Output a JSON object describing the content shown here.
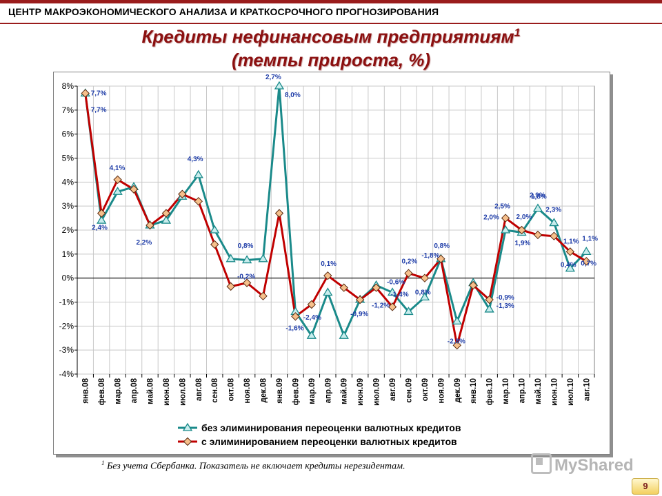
{
  "header": {
    "org": "ЦЕНТР МАКРОЭКОНОМИЧЕСКОГО АНАЛИЗА И КРАТКОСРОЧНОГО ПРОГНОЗИРОВАНИЯ"
  },
  "title": {
    "line1": "Кредиты нефинансовым предприятиям",
    "sup": "1",
    "line2": "(темпы прироста, %)"
  },
  "footnote": {
    "sup": "1",
    "text": " Без учета Сбербанка. Показатель не включает кредиты нерезидентам."
  },
  "page_number": "9",
  "watermark": "MyShared",
  "colors": {
    "accent": "#9a1c1c",
    "title": "#8b1010",
    "series_teal": "#1a8a8a",
    "series_red": "#c00000",
    "label_blue": "#1f3da8"
  },
  "chart_data": {
    "type": "line",
    "ylim": [
      -4,
      8
    ],
    "yticks": [
      "-4%",
      "-3%",
      "-2%",
      "-1%",
      "0%",
      "1%",
      "2%",
      "3%",
      "4%",
      "5%",
      "6%",
      "7%",
      "8%"
    ],
    "ytick_values": [
      -4,
      -3,
      -2,
      -1,
      0,
      1,
      2,
      3,
      4,
      5,
      6,
      7,
      8
    ],
    "grid": true,
    "legend_position": "bottom",
    "categories": [
      "янв.08",
      "фев.08",
      "мар.08",
      "апр.08",
      "май.08",
      "июн.08",
      "июл.08",
      "авг.08",
      "сен.08",
      "окт.08",
      "ноя.08",
      "дек.08",
      "янв.09",
      "фев.09",
      "мар.09",
      "апр.09",
      "май.09",
      "июн.09",
      "июл.09",
      "авг.09",
      "сен.09",
      "окт.09",
      "ноя.09",
      "дек.09",
      "янв.10",
      "фев.10",
      "мар.10",
      "апр.10",
      "май.10",
      "июн.10",
      "июл.10",
      "авг.10"
    ],
    "series": [
      {
        "name": "без элиминирования переоценки валютных кредитов",
        "color": "#1a8a8a",
        "marker": "triangle",
        "values": [
          7.7,
          2.4,
          3.6,
          3.8,
          2.2,
          2.4,
          3.4,
          4.3,
          2.0,
          0.8,
          0.75,
          0.8,
          8.0,
          -1.4,
          -2.4,
          -0.6,
          -2.4,
          -0.9,
          -0.3,
          -0.6,
          -1.4,
          -0.8,
          0.8,
          -1.8,
          -0.2,
          -1.3,
          2.0,
          1.9,
          2.9,
          2.3,
          0.4,
          1.1
        ]
      },
      {
        "name": "с элиминированием переоценки валютных кредитов",
        "color": "#c00000",
        "marker": "diamond",
        "values": [
          7.7,
          2.7,
          4.1,
          3.7,
          2.2,
          2.7,
          3.5,
          3.2,
          1.4,
          -0.35,
          -0.2,
          -0.75,
          2.7,
          -1.6,
          -1.1,
          0.1,
          -0.4,
          -0.9,
          -0.4,
          -1.2,
          0.2,
          0.0,
          0.8,
          -2.8,
          -0.3,
          -0.9,
          2.5,
          2.0,
          1.8,
          1.75,
          1.1,
          0.7
        ]
      }
    ],
    "data_labels": [
      {
        "i": 0,
        "text": "7,7%",
        "dx": 8,
        "dy": 3
      },
      {
        "i": 0,
        "text": "7,7%",
        "dx": 8,
        "dy": 27
      },
      {
        "i": 1,
        "text": "2,4%",
        "dx": -14,
        "dy": 24
      },
      {
        "i": 2,
        "text": "4,1%",
        "dx": -12,
        "dy": -14
      },
      {
        "i": 4,
        "text": "2,2%",
        "dx": -20,
        "dy": 28
      },
      {
        "i": 7,
        "text": "4,3%",
        "dx": -16,
        "dy": -20
      },
      {
        "i": 9,
        "text": "0,8%",
        "dx": 10,
        "dy": -16
      },
      {
        "i": 10,
        "text": "-0,2%",
        "dx": -14,
        "dy": 27
      },
      {
        "i": 12,
        "text": "8,0%",
        "dx": 8,
        "dy": 16
      },
      {
        "i": 12,
        "text": "2,7%",
        "dx": -20,
        "dy": -10
      },
      {
        "i": 13,
        "text": "-1,6%",
        "dx": -14,
        "dy": 27
      },
      {
        "i": 14,
        "text": "-2,4%",
        "dx": -12,
        "dy": 22
      },
      {
        "i": 15,
        "text": "0,1%",
        "dx": -10,
        "dy": -14
      },
      {
        "i": 17,
        "text": "-0,9%",
        "dx": -14,
        "dy": 24
      },
      {
        "i": 19,
        "text": "-0,6%",
        "dx": -8,
        "dy": -12
      },
      {
        "i": 19,
        "text": "-1,2%",
        "dx": -30,
        "dy": 22
      },
      {
        "i": 20,
        "text": "-1,4%",
        "dx": -26,
        "dy": 34
      },
      {
        "i": 20,
        "text": "0,2%",
        "dx": -10,
        "dy": -14
      },
      {
        "i": 21,
        "text": "0,8%",
        "dx": -14,
        "dy": 24
      },
      {
        "i": 22,
        "text": "0,8%",
        "dx": -10,
        "dy": -16
      },
      {
        "i": 22,
        "text": "-1,8%",
        "dx": -28,
        "dy": -2
      },
      {
        "i": 23,
        "text": "-2,8%",
        "dx": -14,
        "dy": 32
      },
      {
        "i": 25,
        "text": "-1,3%",
        "dx": 10,
        "dy": 12
      },
      {
        "i": 25,
        "text": "-0,9%",
        "dx": 10,
        "dy": 0
      },
      {
        "i": 26,
        "text": "2,0%",
        "dx": -32,
        "dy": 2
      },
      {
        "i": 26,
        "text": "2,5%",
        "dx": -16,
        "dy": -14
      },
      {
        "i": 27,
        "text": "2,0%",
        "dx": -8,
        "dy": -16
      },
      {
        "i": 27,
        "text": "1,9%",
        "dx": -10,
        "dy": 22
      },
      {
        "i": 28,
        "text": "2,9%",
        "dx": -12,
        "dy": -16
      },
      {
        "i": 28,
        "text": "1,8%",
        "dx": -10,
        "dy": -14
      },
      {
        "i": 29,
        "text": "2,3%",
        "dx": -12,
        "dy": -16
      },
      {
        "i": 30,
        "text": "1,1%",
        "dx": -10,
        "dy": -12
      },
      {
        "i": 30,
        "text": "0,4%",
        "dx": -14,
        "dy": 22
      },
      {
        "i": 31,
        "text": "1,1%",
        "dx": -6,
        "dy": -16
      },
      {
        "i": 31,
        "text": "0,7%",
        "dx": -8,
        "dy": 20
      }
    ]
  }
}
